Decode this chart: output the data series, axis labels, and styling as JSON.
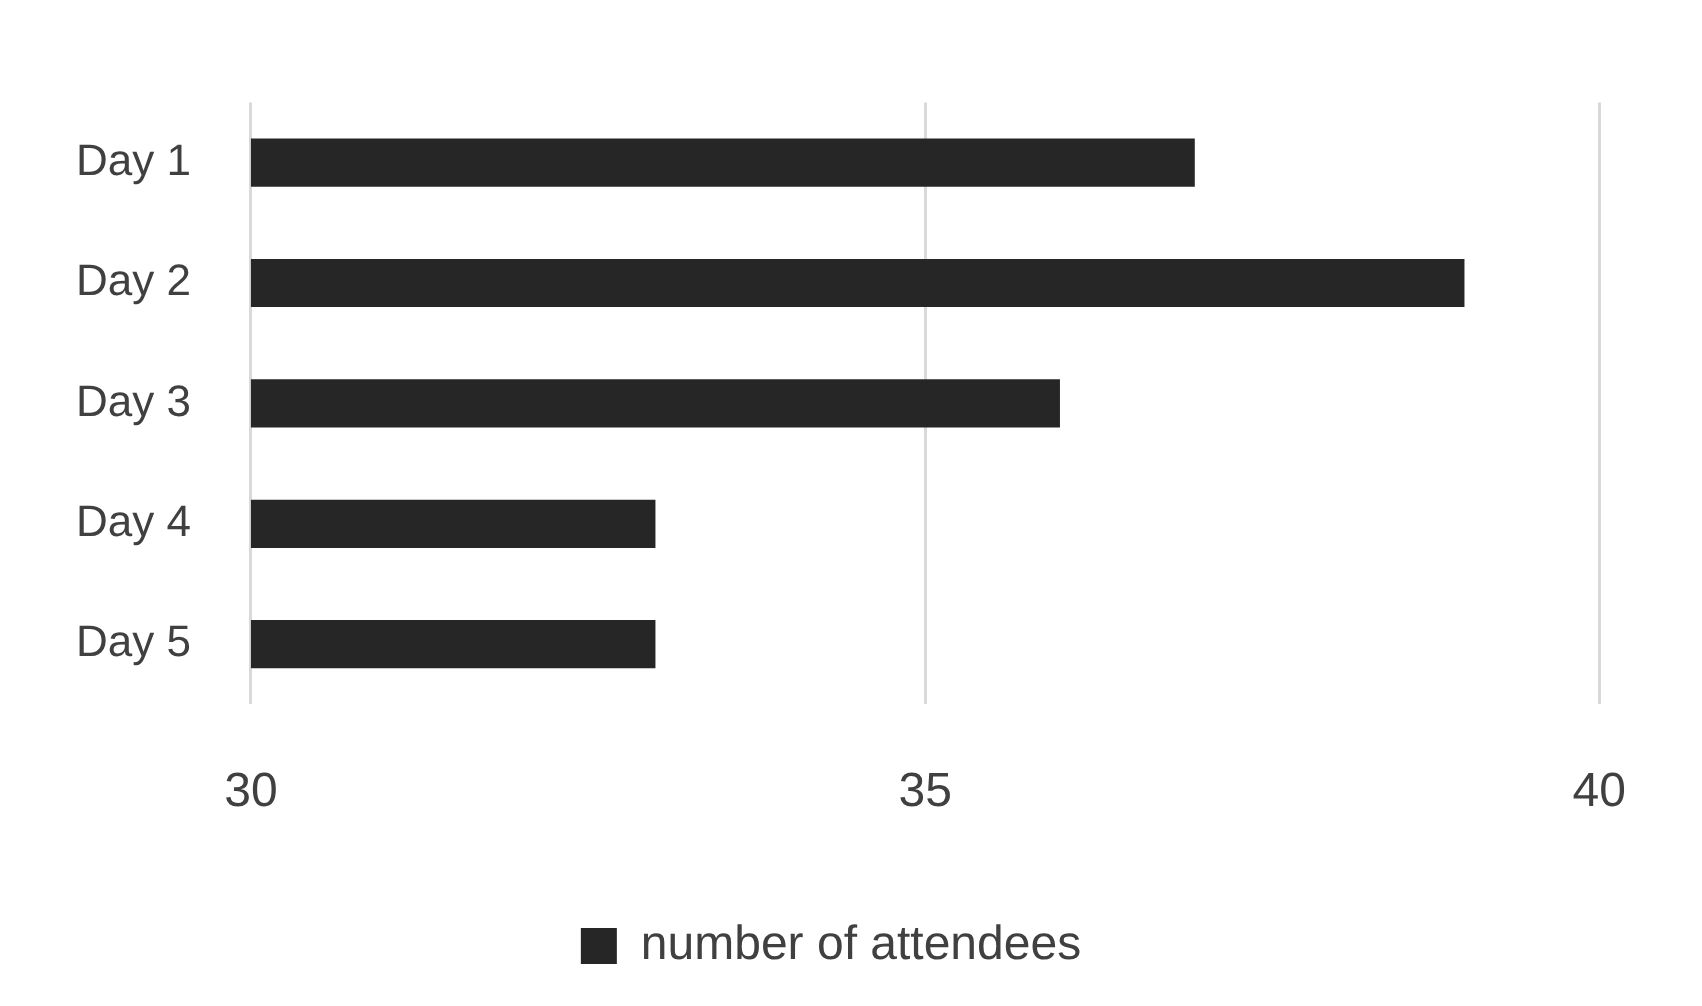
{
  "chart_data": {
    "type": "bar",
    "orientation": "horizontal",
    "categories": [
      "Day 1",
      "Day 2",
      "Day 3",
      "Day 4",
      "Day 5"
    ],
    "series": [
      {
        "name": "number of attendees",
        "color": "#262626",
        "values": [
          37,
          39,
          36,
          33,
          33
        ]
      }
    ],
    "xlim": [
      30,
      40
    ],
    "xticks": [
      30,
      35,
      40
    ],
    "grid": "x",
    "legend": "bottom"
  }
}
